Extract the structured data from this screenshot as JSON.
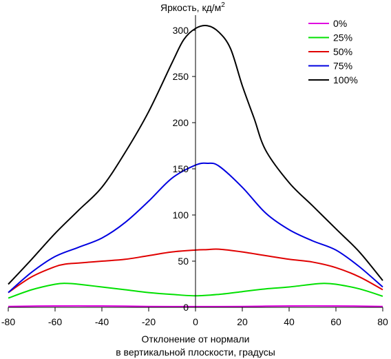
{
  "chart_data": {
    "type": "line",
    "title": "",
    "ylabel": "Яркость, кд/м",
    "ylabel_superscript": "2",
    "xlabel_line1": "Отклонение от нормали",
    "xlabel_line2": "в вертикальной плоскости, градусы",
    "xlim": [
      -80,
      80
    ],
    "ylim": [
      0,
      310
    ],
    "x_ticks": [
      -80,
      -60,
      -40,
      -20,
      0,
      20,
      40,
      60,
      80
    ],
    "x_tick_labels": [
      "-80",
      "-60",
      "-40",
      "-20",
      "0",
      "20",
      "40",
      "60",
      "80"
    ],
    "y_ticks": [
      0,
      50,
      100,
      150,
      200,
      250,
      300
    ],
    "y_tick_labels": [
      "0",
      "50",
      "100",
      "150",
      "200",
      "250",
      "300"
    ],
    "grid": false,
    "legend_position": "top-right",
    "series": [
      {
        "name": "0%",
        "color": "#e000e0",
        "points": [
          [
            -80,
            1
          ],
          [
            -60,
            1.5
          ],
          [
            -40,
            1.5
          ],
          [
            -20,
            1
          ],
          [
            0,
            0.8
          ],
          [
            20,
            1
          ],
          [
            40,
            1.5
          ],
          [
            60,
            1.5
          ],
          [
            80,
            1
          ]
        ]
      },
      {
        "name": "25%",
        "color": "#00e000",
        "points": [
          [
            -80,
            10
          ],
          [
            -70,
            19
          ],
          [
            -60,
            25
          ],
          [
            -55,
            26
          ],
          [
            -50,
            25
          ],
          [
            -40,
            22
          ],
          [
            -30,
            19
          ],
          [
            -20,
            16
          ],
          [
            -10,
            14
          ],
          [
            0,
            12.5
          ],
          [
            10,
            14
          ],
          [
            20,
            17
          ],
          [
            30,
            20
          ],
          [
            40,
            22
          ],
          [
            50,
            25
          ],
          [
            55,
            26
          ],
          [
            60,
            25
          ],
          [
            70,
            20
          ],
          [
            80,
            12
          ]
        ]
      },
      {
        "name": "50%",
        "color": "#e00000",
        "points": [
          [
            -80,
            16
          ],
          [
            -70,
            33
          ],
          [
            -60,
            44
          ],
          [
            -55,
            47
          ],
          [
            -50,
            48
          ],
          [
            -40,
            50
          ],
          [
            -30,
            52
          ],
          [
            -20,
            56
          ],
          [
            -10,
            60
          ],
          [
            0,
            62
          ],
          [
            5,
            62.5
          ],
          [
            10,
            63
          ],
          [
            20,
            60
          ],
          [
            30,
            56
          ],
          [
            40,
            52
          ],
          [
            50,
            49
          ],
          [
            60,
            43
          ],
          [
            70,
            33
          ],
          [
            80,
            19
          ]
        ]
      },
      {
        "name": "75%",
        "color": "#0000e0",
        "points": [
          [
            -80,
            16
          ],
          [
            -70,
            38
          ],
          [
            -60,
            55
          ],
          [
            -50,
            65
          ],
          [
            -40,
            75
          ],
          [
            -30,
            92
          ],
          [
            -20,
            115
          ],
          [
            -10,
            140
          ],
          [
            0,
            154
          ],
          [
            5,
            156
          ],
          [
            10,
            153
          ],
          [
            20,
            130
          ],
          [
            30,
            102
          ],
          [
            40,
            84
          ],
          [
            50,
            72
          ],
          [
            60,
            62
          ],
          [
            70,
            44
          ],
          [
            80,
            22
          ]
        ]
      },
      {
        "name": "100%",
        "color": "#000000",
        "points": [
          [
            -80,
            25
          ],
          [
            -70,
            52
          ],
          [
            -60,
            80
          ],
          [
            -50,
            105
          ],
          [
            -40,
            130
          ],
          [
            -30,
            168
          ],
          [
            -20,
            212
          ],
          [
            -10,
            265
          ],
          [
            -5,
            290
          ],
          [
            0,
            302
          ],
          [
            5,
            305
          ],
          [
            10,
            298
          ],
          [
            15,
            280
          ],
          [
            20,
            240
          ],
          [
            25,
            205
          ],
          [
            30,
            170
          ],
          [
            40,
            135
          ],
          [
            50,
            110
          ],
          [
            60,
            85
          ],
          [
            70,
            60
          ],
          [
            80,
            29
          ]
        ]
      }
    ]
  }
}
